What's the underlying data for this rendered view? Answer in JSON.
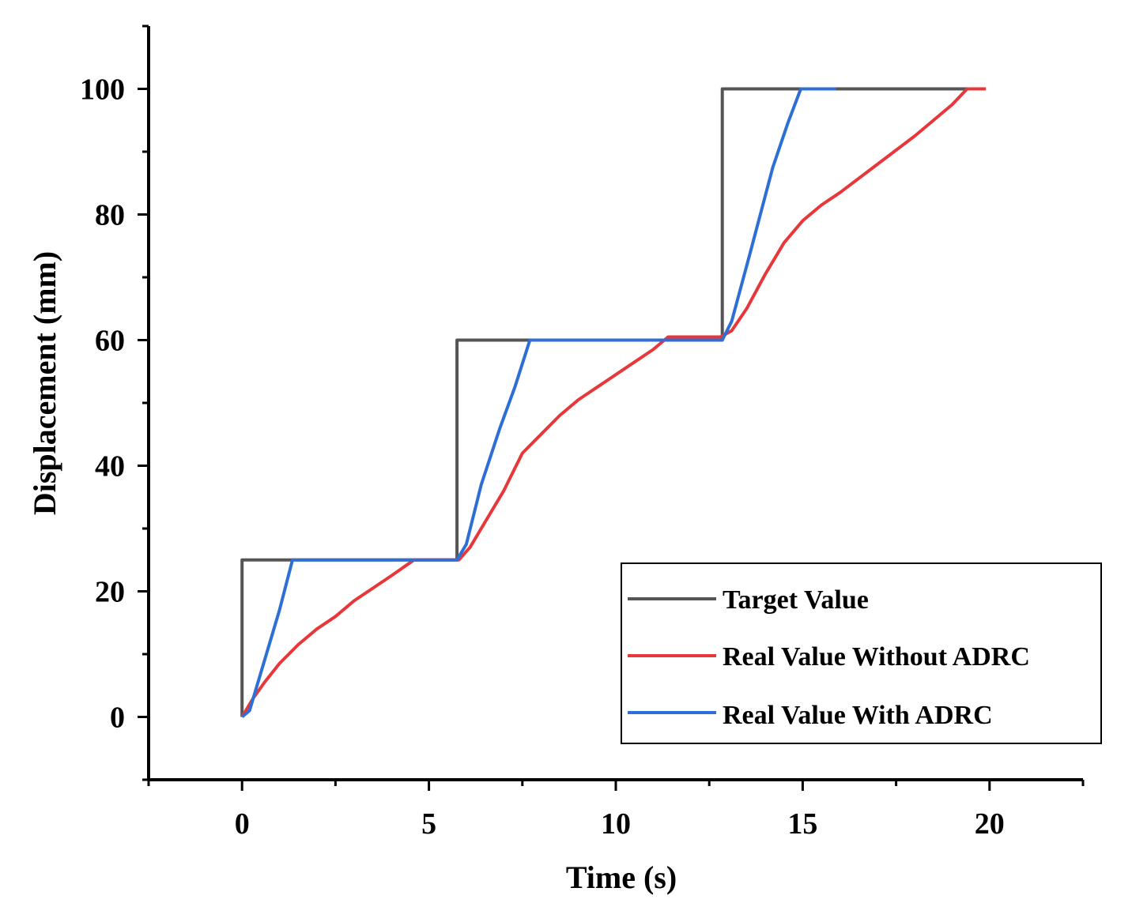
{
  "chart_data": {
    "type": "line",
    "title": "",
    "xlabel": "Time (s)",
    "ylabel": "Displacement (mm)",
    "xlim": [
      -2.5,
      22.5
    ],
    "ylim": [
      -10,
      110
    ],
    "x_ticks": [
      0,
      5,
      10,
      15,
      20
    ],
    "x_tick_labels": [
      "0",
      "5",
      "10",
      "15",
      "20"
    ],
    "y_ticks": [
      0,
      20,
      40,
      60,
      80,
      100
    ],
    "y_tick_labels": [
      "0",
      "20",
      "40",
      "60",
      "80",
      "100"
    ],
    "grid": false,
    "legend_position": "bottom-right",
    "series": [
      {
        "name": "Target Value",
        "color": "#555555",
        "x": [
          0,
          0,
          5.75,
          5.75,
          12.85,
          12.85,
          19.9
        ],
        "y": [
          0,
          25,
          25,
          60,
          60,
          100,
          100
        ]
      },
      {
        "name": "Real Value Without ADRC",
        "color": "#e8373a",
        "x": [
          0,
          0.3,
          0.6,
          1.0,
          1.5,
          2.0,
          2.5,
          3.0,
          3.5,
          4.0,
          4.6,
          5.0,
          5.5,
          5.8,
          6.1,
          6.5,
          7.0,
          7.5,
          8.0,
          8.5,
          9.0,
          10.0,
          11.0,
          11.4,
          12.0,
          12.8,
          13.1,
          13.5,
          14.0,
          14.5,
          15.0,
          15.5,
          16.0,
          17.0,
          18.0,
          19.0,
          19.4,
          19.9
        ],
        "y": [
          0,
          3,
          5.5,
          8.5,
          11.5,
          14,
          16,
          18.5,
          20.5,
          22.5,
          25,
          25,
          25,
          25,
          27,
          31,
          36,
          42,
          45,
          48,
          50.5,
          54.5,
          58.5,
          60.5,
          60.5,
          60.5,
          61.5,
          65,
          70.5,
          75.5,
          79,
          81.5,
          83.5,
          88,
          92.5,
          97.5,
          100,
          100
        ]
      },
      {
        "name": "Real Value With ADRC",
        "color": "#2e6fd6",
        "x": [
          0,
          0.2,
          0.6,
          1.0,
          1.35,
          2.0,
          5.75,
          6.0,
          6.4,
          6.9,
          7.3,
          7.7,
          12.85,
          13.1,
          13.6,
          14.2,
          14.6,
          14.95,
          15.9
        ],
        "y": [
          0,
          1,
          9,
          17,
          25,
          25,
          25,
          27.5,
          37,
          46,
          52.5,
          60,
          60,
          63,
          74,
          87.5,
          94.5,
          100,
          100
        ]
      }
    ],
    "legend": [
      "Target Value",
      "Real Value Without ADRC",
      "Real Value With ADRC"
    ]
  }
}
